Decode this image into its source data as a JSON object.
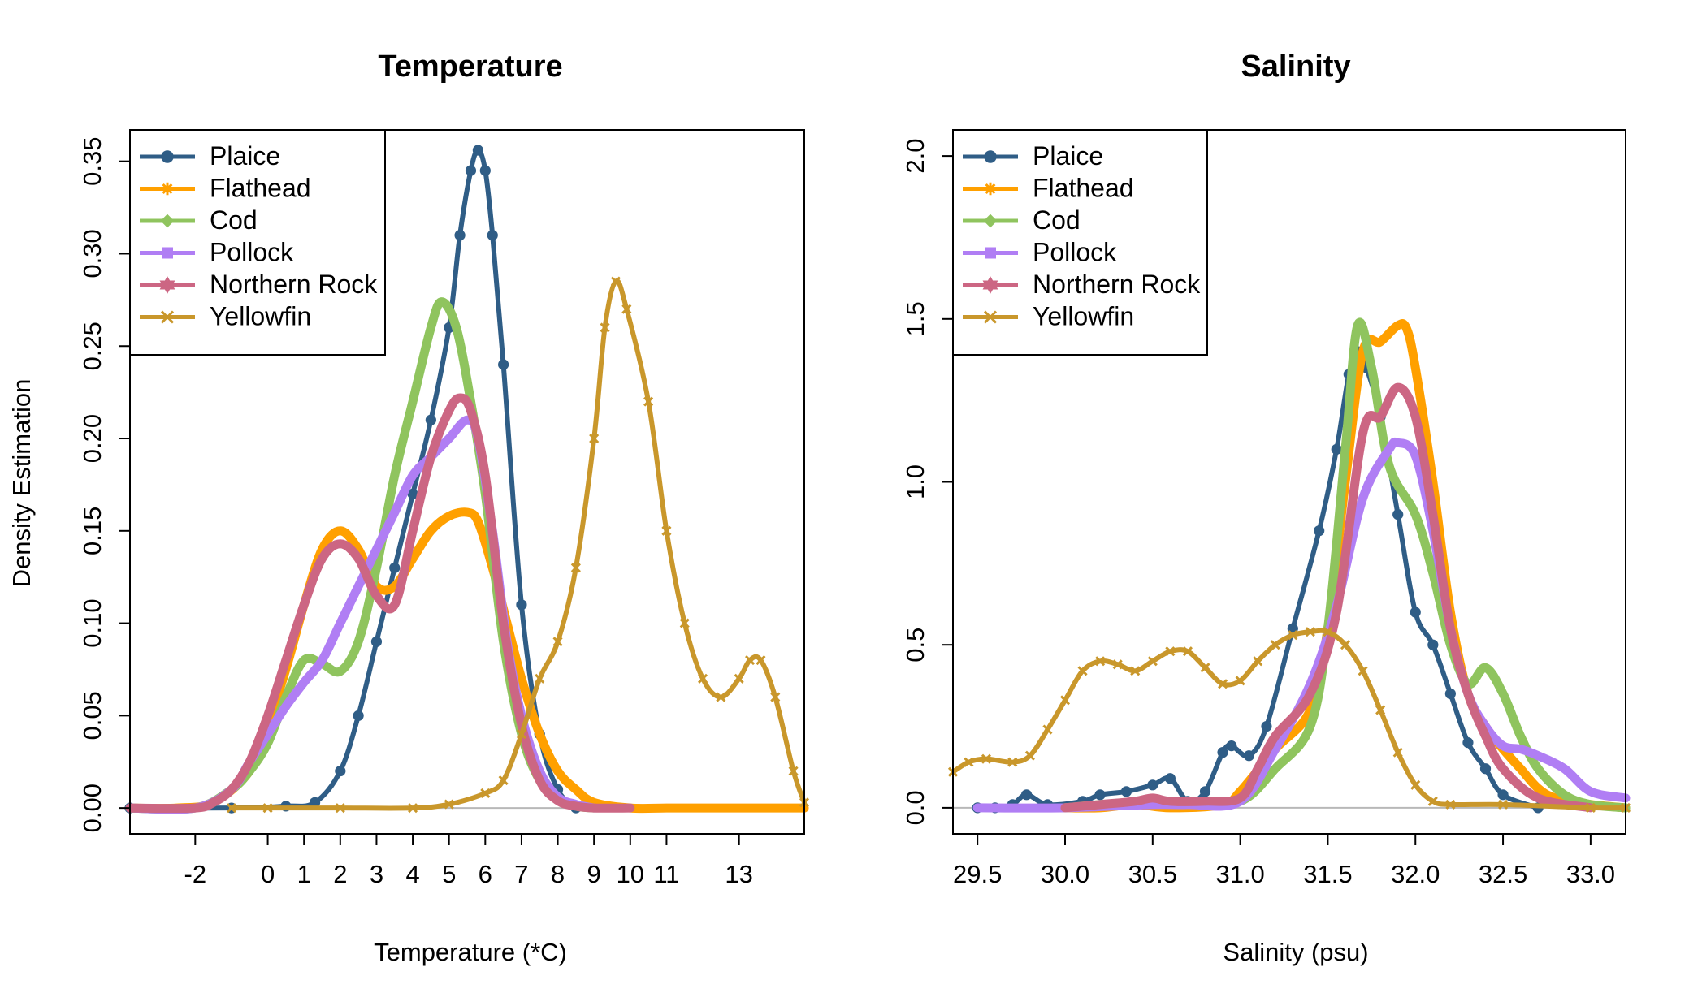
{
  "chart_data": [
    {
      "type": "line",
      "title": "Temperature",
      "xlabel": "Temperature (*C)",
      "ylabel": "Density Estimation",
      "xlim": [
        -3.8,
        14.8
      ],
      "ylim": [
        -0.014,
        0.367
      ],
      "x_ticks": [
        -2,
        0,
        1,
        2,
        3,
        4,
        5,
        6,
        7,
        8,
        9,
        10,
        11,
        13
      ],
      "y_ticks": [
        0.0,
        0.05,
        0.1,
        0.15,
        0.2,
        0.25,
        0.3,
        0.35
      ],
      "x_tick_labels": [
        "-2",
        "0",
        "1",
        "2",
        "3",
        "4",
        "5",
        "6",
        "7",
        "8",
        "9",
        "10",
        "11",
        "13"
      ],
      "y_tick_labels": [
        "0.00",
        "0.05",
        "0.10",
        "0.15",
        "0.20",
        "0.25",
        "0.30",
        "0.35"
      ],
      "zero_line": true,
      "legend_position": "top-left",
      "series": [
        {
          "name": "Plaice",
          "color": "#2f5d86",
          "marker": "circle",
          "x": [
            -3.8,
            -1,
            0.5,
            1.3,
            2,
            2.5,
            3,
            3.5,
            4,
            4.5,
            5,
            5.3,
            5.6,
            5.8,
            6,
            6.2,
            6.5,
            7,
            7.5,
            8,
            8.5
          ],
          "y": [
            0,
            0,
            0.001,
            0.003,
            0.02,
            0.05,
            0.09,
            0.13,
            0.17,
            0.21,
            0.26,
            0.31,
            0.345,
            0.356,
            0.345,
            0.31,
            0.24,
            0.11,
            0.04,
            0.01,
            0
          ]
        },
        {
          "name": "Flathead",
          "color": "#ffa000",
          "marker": "asterisk",
          "x": [
            -3.8,
            -2.5,
            -1.5,
            -0.5,
            0,
            0.5,
            1,
            1.5,
            2,
            2.5,
            3,
            3.5,
            4,
            4.5,
            5,
            5.5,
            5.8,
            6.2,
            6.6,
            7,
            7.5,
            8,
            8.5,
            9,
            10,
            11,
            12,
            13,
            14,
            14.8
          ],
          "y": [
            0,
            0,
            0.003,
            0.02,
            0.045,
            0.075,
            0.11,
            0.14,
            0.15,
            0.14,
            0.12,
            0.12,
            0.135,
            0.15,
            0.158,
            0.16,
            0.155,
            0.13,
            0.1,
            0.07,
            0.04,
            0.02,
            0.01,
            0.003,
            0,
            0,
            0,
            0,
            0,
            0
          ]
        },
        {
          "name": "Cod",
          "color": "#8fc45e",
          "marker": "diamond",
          "x": [
            -3.8,
            -2,
            -1,
            -0.5,
            0,
            0.5,
            1,
            1.5,
            2,
            2.5,
            3,
            3.5,
            4,
            4.5,
            4.8,
            5.2,
            5.6,
            6,
            6.5,
            7,
            7.5,
            8,
            8.5,
            9
          ],
          "y": [
            0,
            0,
            0.01,
            0.02,
            0.035,
            0.06,
            0.08,
            0.078,
            0.074,
            0.09,
            0.13,
            0.18,
            0.22,
            0.26,
            0.274,
            0.26,
            0.22,
            0.17,
            0.09,
            0.04,
            0.015,
            0.005,
            0.001,
            0
          ]
        },
        {
          "name": "Pollock",
          "color": "#b07ef4",
          "marker": "square",
          "x": [
            -3.8,
            -2,
            -1,
            -0.5,
            0,
            0.5,
            1,
            1.5,
            2,
            2.5,
            3,
            3.5,
            4,
            4.5,
            5,
            5.5,
            5.8,
            6.2,
            6.6,
            7,
            7.5,
            8,
            8.5,
            9
          ],
          "y": [
            0,
            0,
            0.01,
            0.025,
            0.04,
            0.055,
            0.068,
            0.08,
            0.1,
            0.12,
            0.14,
            0.16,
            0.18,
            0.19,
            0.2,
            0.21,
            0.2,
            0.15,
            0.09,
            0.05,
            0.02,
            0.006,
            0.002,
            0
          ]
        },
        {
          "name": "Northern Rock",
          "color": "#cc6683",
          "marker": "star",
          "x": [
            -3.8,
            -2,
            -1.5,
            -1,
            -0.5,
            0,
            0.5,
            1,
            1.5,
            2,
            2.5,
            3,
            3.5,
            4,
            4.5,
            5,
            5.3,
            5.6,
            6,
            6.5,
            7,
            7.5,
            8,
            8.5,
            9,
            10
          ],
          "y": [
            0,
            0,
            0.003,
            0.01,
            0.025,
            0.05,
            0.08,
            0.11,
            0.135,
            0.143,
            0.135,
            0.115,
            0.11,
            0.15,
            0.19,
            0.215,
            0.222,
            0.215,
            0.18,
            0.1,
            0.045,
            0.015,
            0.004,
            0.001,
            0,
            0
          ]
        },
        {
          "name": "Yellowfin",
          "color": "#c9972b",
          "marker": "cross",
          "x": [
            -1,
            0,
            2,
            4,
            5,
            6,
            6.5,
            7,
            7.5,
            8,
            8.5,
            9,
            9.3,
            9.6,
            9.9,
            10.5,
            11,
            11.5,
            12,
            12.5,
            13,
            13.3,
            13.6,
            14,
            14.5,
            14.8
          ],
          "y": [
            0,
            0,
            0,
            0,
            0.002,
            0.008,
            0.015,
            0.04,
            0.07,
            0.09,
            0.13,
            0.2,
            0.26,
            0.285,
            0.27,
            0.22,
            0.15,
            0.1,
            0.07,
            0.06,
            0.07,
            0.08,
            0.08,
            0.06,
            0.02,
            0.003
          ]
        }
      ]
    },
    {
      "type": "line",
      "title": "Salinity",
      "xlabel": "Salinity (psu)",
      "ylabel": "",
      "xlim": [
        29.36,
        33.2
      ],
      "ylim": [
        -0.08,
        2.08
      ],
      "x_ticks": [
        29.5,
        30.0,
        30.5,
        31.0,
        31.5,
        32.0,
        32.5,
        33.0
      ],
      "y_ticks": [
        0.0,
        0.5,
        1.0,
        1.5,
        2.0
      ],
      "x_tick_labels": [
        "29.5",
        "30.0",
        "30.5",
        "31.0",
        "31.5",
        "32.0",
        "32.5",
        "33.0"
      ],
      "y_tick_labels": [
        "0.0",
        "0.5",
        "1.0",
        "1.5",
        "2.0"
      ],
      "zero_line": true,
      "legend_position": "top-left",
      "series": [
        {
          "name": "Plaice",
          "color": "#2f5d86",
          "marker": "circle",
          "x": [
            29.5,
            29.6,
            29.7,
            29.78,
            29.9,
            30.1,
            30.2,
            30.35,
            30.5,
            30.6,
            30.7,
            30.8,
            30.9,
            30.95,
            31.05,
            31.15,
            31.3,
            31.45,
            31.55,
            31.62,
            31.67,
            31.72,
            31.8,
            31.9,
            32.0,
            32.1,
            32.2,
            32.3,
            32.4,
            32.5,
            32.7
          ],
          "y": [
            0,
            0,
            0.01,
            0.04,
            0.01,
            0.02,
            0.04,
            0.05,
            0.07,
            0.09,
            0.02,
            0.05,
            0.17,
            0.19,
            0.16,
            0.25,
            0.55,
            0.85,
            1.1,
            1.33,
            1.4,
            1.35,
            1.2,
            0.9,
            0.6,
            0.5,
            0.35,
            0.2,
            0.12,
            0.04,
            0
          ]
        },
        {
          "name": "Flathead",
          "color": "#ffa000",
          "marker": "asterisk",
          "x": [
            30.0,
            30.2,
            30.4,
            30.6,
            30.9,
            31.0,
            31.2,
            31.4,
            31.5,
            31.6,
            31.7,
            31.8,
            31.9,
            31.95,
            32.0,
            32.1,
            32.2,
            32.3,
            32.4,
            32.5,
            32.6,
            32.7,
            32.8,
            33.0,
            33.2
          ],
          "y": [
            0,
            0,
            0.01,
            0.0,
            0.01,
            0.05,
            0.18,
            0.3,
            0.55,
            1.0,
            1.4,
            1.43,
            1.48,
            1.47,
            1.35,
            1.0,
            0.6,
            0.35,
            0.25,
            0.18,
            0.12,
            0.06,
            0.03,
            0.01,
            0
          ]
        },
        {
          "name": "Cod",
          "color": "#8fc45e",
          "marker": "diamond",
          "x": [
            30.0,
            30.2,
            30.5,
            30.7,
            31.0,
            31.2,
            31.4,
            31.5,
            31.6,
            31.67,
            31.75,
            31.85,
            32.0,
            32.1,
            32.2,
            32.3,
            32.4,
            32.5,
            32.6,
            32.7,
            32.85,
            33.0,
            33.2
          ],
          "y": [
            0,
            0.01,
            0.02,
            0.02,
            0.02,
            0.12,
            0.25,
            0.55,
            1.1,
            1.48,
            1.35,
            1.05,
            0.9,
            0.72,
            0.5,
            0.38,
            0.43,
            0.35,
            0.22,
            0.12,
            0.04,
            0.01,
            0
          ]
        },
        {
          "name": "Pollock",
          "color": "#b07ef4",
          "marker": "square",
          "x": [
            29.5,
            30.0,
            30.5,
            30.7,
            31.0,
            31.2,
            31.4,
            31.55,
            31.7,
            31.85,
            31.9,
            32.0,
            32.1,
            32.2,
            32.3,
            32.4,
            32.5,
            32.6,
            32.7,
            32.85,
            33.0,
            33.2
          ],
          "y": [
            0,
            0,
            0.01,
            0.01,
            0.02,
            0.18,
            0.38,
            0.62,
            0.95,
            1.1,
            1.12,
            1.08,
            0.85,
            0.55,
            0.35,
            0.25,
            0.19,
            0.18,
            0.16,
            0.12,
            0.05,
            0.03
          ]
        },
        {
          "name": "Northern Rock",
          "color": "#cc6683",
          "marker": "star",
          "x": [
            30.0,
            30.2,
            30.4,
            30.5,
            30.6,
            30.8,
            31.0,
            31.1,
            31.2,
            31.4,
            31.55,
            31.7,
            31.8,
            31.9,
            32.0,
            32.1,
            32.2,
            32.3,
            32.4,
            32.5,
            32.7,
            33.0
          ],
          "y": [
            0,
            0.01,
            0.02,
            0.03,
            0.02,
            0.02,
            0.03,
            0.12,
            0.22,
            0.35,
            0.6,
            1.15,
            1.2,
            1.29,
            1.2,
            0.9,
            0.55,
            0.35,
            0.22,
            0.12,
            0.03,
            0
          ]
        },
        {
          "name": "Yellowfin",
          "color": "#c9972b",
          "marker": "cross",
          "x": [
            29.36,
            29.45,
            29.55,
            29.7,
            29.8,
            29.9,
            30.0,
            30.1,
            30.2,
            30.3,
            30.4,
            30.5,
            30.6,
            30.7,
            30.8,
            30.9,
            31.0,
            31.1,
            31.2,
            31.3,
            31.4,
            31.5,
            31.6,
            31.7,
            31.8,
            31.9,
            32.0,
            32.1,
            32.2,
            32.5,
            33.0,
            33.2
          ],
          "y": [
            0.11,
            0.14,
            0.15,
            0.14,
            0.16,
            0.24,
            0.33,
            0.42,
            0.45,
            0.44,
            0.42,
            0.45,
            0.48,
            0.48,
            0.43,
            0.38,
            0.39,
            0.45,
            0.5,
            0.53,
            0.54,
            0.54,
            0.5,
            0.42,
            0.3,
            0.17,
            0.07,
            0.02,
            0.01,
            0.01,
            0.0,
            0.0
          ]
        }
      ]
    }
  ]
}
